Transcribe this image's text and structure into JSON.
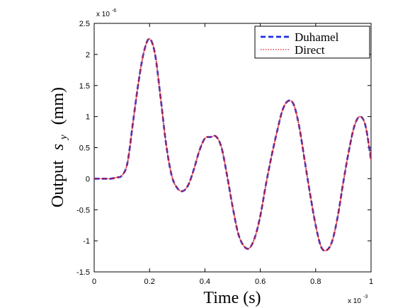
{
  "chart_data": {
    "type": "line",
    "title": "",
    "xlabel": "Time (s)",
    "ylabel": "Output s_y (mm)",
    "ylabel_prefix": "Output",
    "ylabel_symbol": "s",
    "ylabel_subscript": "y",
    "ylabel_suffix": "(mm)",
    "x_multiplier_label": "x 10",
    "x_multiplier_exp": "-3",
    "y_multiplier_label": "x 10",
    "y_multiplier_exp": "-6",
    "xlim": [
      0,
      0.001
    ],
    "ylim": [
      -1.5e-06,
      2.5e-06
    ],
    "xticks": [
      0,
      0.0002,
      0.0004,
      0.0006,
      0.0008,
      0.001
    ],
    "xtick_labels": [
      "0",
      "0.2",
      "0.4",
      "0.6",
      "0.8",
      "1"
    ],
    "yticks": [
      -1.5e-06,
      -1e-06,
      -5e-07,
      0,
      5e-07,
      1e-06,
      1.5e-06,
      2e-06,
      2.5e-06
    ],
    "ytick_labels": [
      "-1.5",
      "-1",
      "-0.5",
      "0",
      "0.5",
      "1",
      "1.5",
      "2",
      "2.5"
    ],
    "grid": false,
    "legend_position": "top-right",
    "x": [
      0,
      2e-05,
      4e-05,
      6e-05,
      8e-05,
      0.0001,
      0.00012,
      0.00014,
      0.00016,
      0.00018,
      0.0002,
      0.00022,
      0.00024,
      0.00026,
      0.00028,
      0.0003,
      0.00032,
      0.00034,
      0.00036,
      0.00038,
      0.0004,
      0.00042,
      0.00044,
      0.00046,
      0.00048,
      0.0005,
      0.00052,
      0.00054,
      0.00056,
      0.00058,
      0.0006,
      0.00062,
      0.00064,
      0.00066,
      0.00068,
      0.0007,
      0.00072,
      0.00074,
      0.00076,
      0.00078,
      0.0008,
      0.00082,
      0.00084,
      0.00086,
      0.00088,
      0.0009,
      0.00092,
      0.00094,
      0.00096,
      0.00098,
      0.001
    ],
    "series": [
      {
        "name": "Duhamel",
        "color": "#1f2ee6",
        "style": "dashed",
        "values": [
          0,
          0,
          0,
          0,
          2e-08,
          5e-08,
          2.5e-07,
          9e-07,
          1.55e-06,
          2.05e-06,
          2.25e-06,
          2e-06,
          1.3e-06,
          5.5e-07,
          5e-08,
          -1.5e-07,
          -2e-07,
          -1e-07,
          1.5e-07,
          4.5e-07,
          6.5e-07,
          6.7e-07,
          6.8e-07,
          5e-07,
          5e-08,
          -4.5e-07,
          -8.8e-07,
          -1.08e-06,
          -1.12e-06,
          -9.5e-07,
          -6e-07,
          -1e-07,
          3.5e-07,
          7.5e-07,
          1.1e-06,
          1.25e-06,
          1.2e-06,
          8.5e-07,
          3e-07,
          -2.5e-07,
          -7.5e-07,
          -1.1e-06,
          -1.15e-06,
          -1e-06,
          -6e-07,
          -5e-08,
          4.5e-07,
          8.5e-07,
          1e-06,
          8.5e-07,
          3e-07
        ]
      },
      {
        "name": "Direct",
        "color": "#e02020",
        "style": "dotted",
        "values": [
          0,
          0,
          0,
          0,
          2e-08,
          5e-08,
          2.5e-07,
          9e-07,
          1.55e-06,
          2.05e-06,
          2.25e-06,
          2e-06,
          1.3e-06,
          5.5e-07,
          5e-08,
          -1.5e-07,
          -2e-07,
          -1e-07,
          1.5e-07,
          4.5e-07,
          6.5e-07,
          6.7e-07,
          6.8e-07,
          5e-07,
          5e-08,
          -4.5e-07,
          -8.8e-07,
          -1.08e-06,
          -1.12e-06,
          -9.5e-07,
          -6e-07,
          -1e-07,
          3.5e-07,
          7.5e-07,
          1.1e-06,
          1.25e-06,
          1.2e-06,
          8.5e-07,
          3e-07,
          -2.5e-07,
          -7.5e-07,
          -1.1e-06,
          -1.15e-06,
          -1e-06,
          -6e-07,
          -5e-08,
          4.5e-07,
          8.5e-07,
          1e-06,
          8.5e-07,
          3e-07
        ]
      }
    ]
  }
}
